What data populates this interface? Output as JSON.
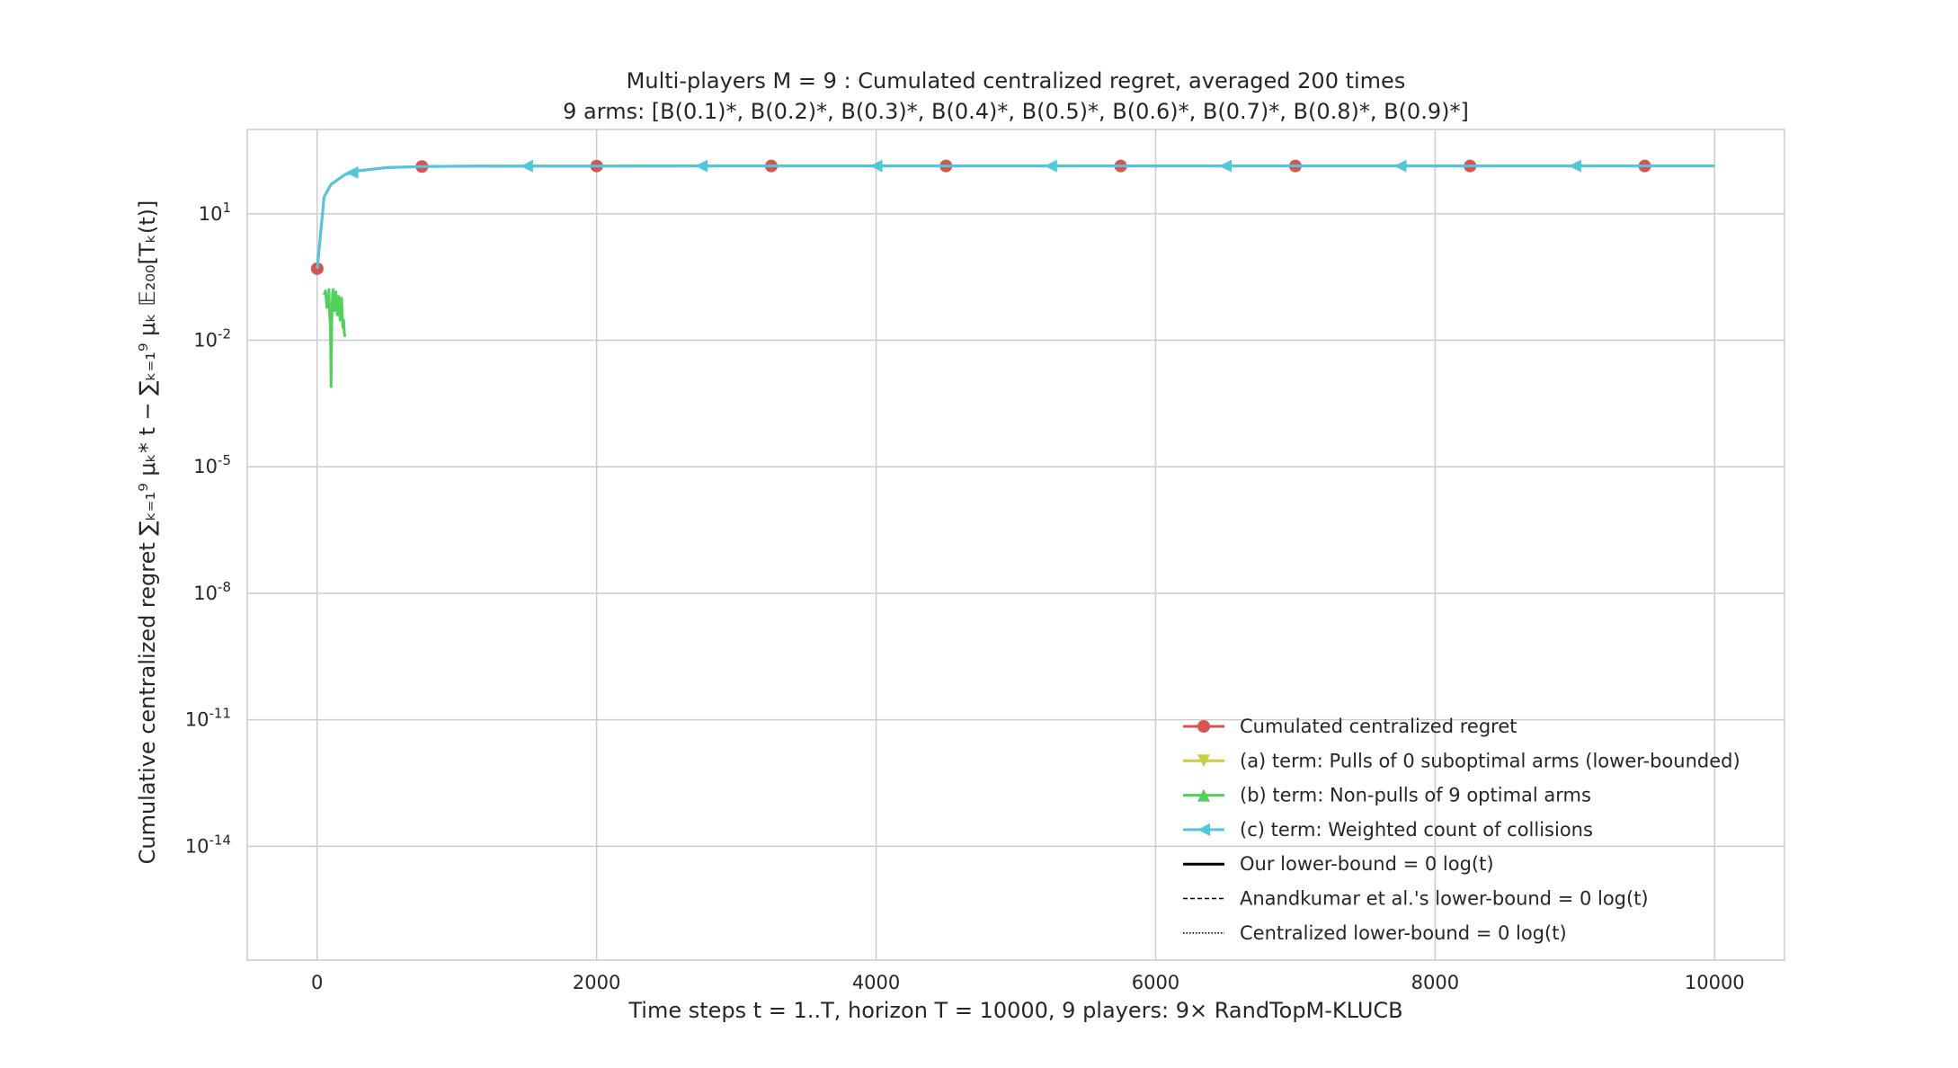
{
  "chart_data": {
    "type": "line",
    "title": "Multi-players M = 9 : Cumulated centralized regret, averaged 200 times",
    "subtitle": "9 arms: [B(0.1)*, B(0.2)*, B(0.3)*, B(0.4)*, B(0.5)*, B(0.6)*, B(0.7)*, B(0.8)*, B(0.9)*]",
    "xlabel": "Time steps t = 1..T, horizon T = 10000, 9 players: 9× RandTopM-KLUCB",
    "ylabel": "Cumulative centralized regret ∑ₖ₌₁⁹ μₖ* t − ∑ₖ₌₁⁹ μₖ 𝔼₂₀₀[Tₖ(t)]",
    "y_scale": "log",
    "xlim": [
      -500,
      10500
    ],
    "ylim_exp": [
      -16.7,
      3.0
    ],
    "grid": true,
    "legend_position": "lower-right",
    "x_ticks": [
      0,
      2000,
      4000,
      6000,
      8000,
      10000
    ],
    "x_tick_labels": [
      "0",
      "2000",
      "4000",
      "6000",
      "8000",
      "10000"
    ],
    "y_ticks_exp": [
      1,
      -2,
      -5,
      -8,
      -11,
      -14
    ],
    "y_tick_base": "10",
    "y_tick_exponents": [
      "1",
      "-2",
      "-5",
      "-8",
      "-11",
      "-14"
    ],
    "series": [
      {
        "name": "Cumulated centralized regret",
        "color": "#d9534f",
        "marker": "circle",
        "style": "solid",
        "x": [
          1,
          50,
          100,
          200,
          300,
          500,
          750,
          1000,
          1500,
          2000,
          3250,
          4500,
          5750,
          7000,
          8250,
          9500,
          10000
        ],
        "y": [
          0.5,
          25,
          50,
          85,
          105,
          125,
          132,
          134,
          135,
          135.5,
          136,
          136,
          136,
          136,
          136,
          136,
          136
        ],
        "markers_x": [
          1,
          750,
          2000,
          3250,
          4500,
          5750,
          7000,
          8250,
          9500
        ]
      },
      {
        "name": "(a) term: Pulls of 0 suboptimal arms (lower-bounded)",
        "color": "#c9cf3a",
        "marker": "triangle-down",
        "style": "solid",
        "x": [],
        "y": []
      },
      {
        "name": "(b) term: Non-pulls of 9 optimal arms",
        "color": "#4fd15a",
        "marker": "triangle-up",
        "style": "solid",
        "x": [
          50,
          60,
          70,
          75,
          80,
          85,
          90,
          95,
          98,
          100,
          102,
          105,
          110,
          115,
          120,
          125,
          130,
          135,
          140,
          145,
          150,
          155,
          160,
          165,
          170,
          175,
          180,
          185,
          190,
          195,
          200
        ],
        "y": [
          0.12,
          0.15,
          0.06,
          0.1,
          0.08,
          0.16,
          0.04,
          0.02,
          0.003,
          0.0008,
          0.004,
          0.03,
          0.12,
          0.16,
          0.09,
          0.05,
          0.1,
          0.14,
          0.07,
          0.04,
          0.08,
          0.11,
          0.05,
          0.03,
          0.06,
          0.1,
          0.04,
          0.02,
          0.03,
          0.015,
          0.012
        ]
      },
      {
        "name": "(c) term: Weighted count of collisions",
        "color": "#4fc9d9",
        "marker": "triangle-left",
        "style": "solid",
        "x": [
          1,
          50,
          100,
          200,
          300,
          500,
          750,
          1000,
          1500,
          2000,
          3250,
          4500,
          5750,
          7000,
          8250,
          9500,
          10000
        ],
        "y": [
          0.5,
          25,
          50,
          85,
          105,
          125,
          132,
          134,
          135,
          135.5,
          136,
          136,
          136,
          136,
          136,
          136,
          136
        ],
        "markers_x": [
          250,
          1500,
          2750,
          4000,
          5250,
          6500,
          7750,
          9000
        ]
      },
      {
        "name": "Our lower-bound = 0 log(t)",
        "color": "#000000",
        "marker": "none",
        "style": "solid",
        "x": [],
        "y": []
      },
      {
        "name": "Anandkumar et al.'s lower-bound = 0 log(t)",
        "color": "#000000",
        "marker": "none",
        "style": "dashed",
        "x": [],
        "y": []
      },
      {
        "name": "Centralized lower-bound = 0 log(t)",
        "color": "#000000",
        "marker": "none",
        "style": "dotted",
        "x": [],
        "y": []
      }
    ]
  }
}
